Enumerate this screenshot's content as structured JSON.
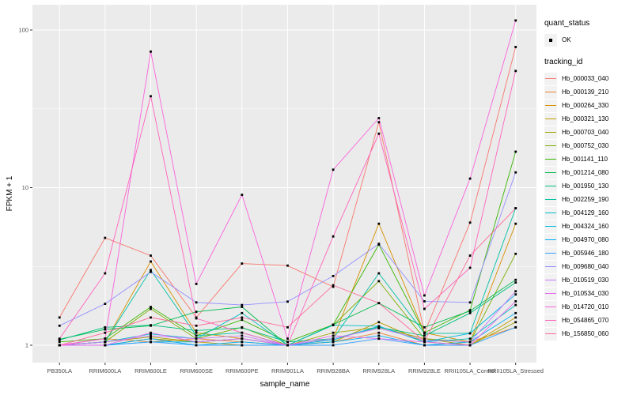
{
  "figure": {
    "x_axis_title": "sample_name",
    "y_axis_title": "FPKM + 1",
    "legend": {
      "quant_status_title": "quant_status",
      "quant_status_items": [
        {
          "label": "OK",
          "marker": "black-point"
        }
      ],
      "tracking_title": "tracking_id"
    },
    "colors": {
      "panel_bg": "#EBEBEB",
      "grid": "#FFFFFF",
      "tick_text": "#4D4D4D",
      "title_text": "#000000",
      "legend_key_bg": "#F2F2F2",
      "point": "#000000"
    }
  },
  "chart_data": {
    "type": "line",
    "title": "",
    "xlabel": "sample_name",
    "ylabel": "FPKM + 1",
    "x_type": "categorical",
    "y_scale": "log10",
    "y_breaks": [
      1,
      10,
      100
    ],
    "y_tick_labels": [
      "1",
      "10",
      "100"
    ],
    "y_minor_breaks": [
      3.162,
      31.623
    ],
    "ylim": [
      0.93,
      145
    ],
    "grid": true,
    "legend_position": "right",
    "point_marker": "small black square (quant_status = OK)",
    "categories": [
      "PB350LA",
      "RRIM600LA",
      "RRIM600LE",
      "RRIM600SE",
      "RRIM600PE",
      "RRIM901LA",
      "RRIM928BA",
      "RRIM928LA",
      "RRIM928LE",
      "RRII105LA_Control",
      "RRII105LA_Stressed"
    ],
    "series": [
      {
        "name": "Hb_000033_040",
        "color": "#F8766D",
        "values": [
          1.5,
          4.8,
          3.7,
          1.5,
          3.3,
          3.2,
          2.35,
          26,
          1.2,
          6.0,
          78
        ]
      },
      {
        "name": "Hb_000139_210",
        "color": "#EA8331",
        "values": [
          1.0,
          1.1,
          1.05,
          1.1,
          1.05,
          1.0,
          1.05,
          1.2,
          1.0,
          1.05,
          1.3
        ]
      },
      {
        "name": "Hb_000264_330",
        "color": "#D89000",
        "values": [
          1.0,
          1.05,
          3.4,
          1.2,
          1.1,
          1.0,
          1.1,
          5.9,
          1.2,
          1.05,
          5.9
        ]
      },
      {
        "name": "Hb_000321_130",
        "color": "#C09B00",
        "values": [
          1.0,
          1.0,
          1.1,
          1.05,
          1.0,
          1.0,
          1.05,
          1.4,
          1.05,
          1.0,
          1.5
        ]
      },
      {
        "name": "Hb_000703_040",
        "color": "#A3A500",
        "values": [
          1.0,
          1.05,
          1.13,
          1.05,
          1.1,
          1.0,
          1.2,
          1.3,
          1.1,
          1.0,
          1.4
        ]
      },
      {
        "name": "Hb_000752_030",
        "color": "#7CAE00",
        "values": [
          1.0,
          1.05,
          1.7,
          1.1,
          1.3,
          1.0,
          1.34,
          2.55,
          1.1,
          1.05,
          3.8
        ]
      },
      {
        "name": "Hb_001141_110",
        "color": "#39B600",
        "values": [
          1.05,
          1.1,
          1.75,
          1.15,
          1.45,
          1.05,
          1.35,
          4.35,
          1.2,
          1.67,
          16.9
        ]
      },
      {
        "name": "Hb_001214_080",
        "color": "#00BB4E",
        "values": [
          1.09,
          1.26,
          1.33,
          1.63,
          1.75,
          1.0,
          1.35,
          1.85,
          1.3,
          1.65,
          2.6
        ]
      },
      {
        "name": "Hb_001950_130",
        "color": "#00BF7D",
        "values": [
          1.08,
          1.3,
          1.34,
          1.24,
          1.29,
          1.05,
          1.1,
          1.3,
          1.15,
          1.6,
          2.5
        ]
      },
      {
        "name": "Hb_002259_190",
        "color": "#00C1A3",
        "values": [
          1.0,
          1.05,
          3.0,
          1.15,
          1.2,
          1.0,
          1.1,
          2.86,
          1.19,
          1.19,
          7.4
        ]
      },
      {
        "name": "Hb_004129_160",
        "color": "#00BFC4",
        "values": [
          1.0,
          1.05,
          1.18,
          1.1,
          1.6,
          1.0,
          1.34,
          1.32,
          1.05,
          1.1,
          1.8
        ]
      },
      {
        "name": "Hb_004324_160",
        "color": "#00BAE0",
        "values": [
          1.0,
          1.0,
          1.05,
          1.05,
          1.1,
          1.0,
          1.08,
          1.32,
          1.05,
          1.19,
          2.1
        ]
      },
      {
        "name": "Hb_004970_080",
        "color": "#00B0F6",
        "values": [
          1.0,
          1.0,
          1.1,
          1.0,
          1.05,
          1.0,
          1.05,
          1.15,
          1.0,
          1.05,
          1.6
        ]
      },
      {
        "name": "Hb_005946_180",
        "color": "#35A2FF",
        "values": [
          1.0,
          1.0,
          1.05,
          1.0,
          1.0,
          1.0,
          1.0,
          1.1,
          1.0,
          1.0,
          1.3
        ]
      },
      {
        "name": "Hb_009680_040",
        "color": "#9590FF",
        "values": [
          1.33,
          1.83,
          2.92,
          1.87,
          1.8,
          1.89,
          2.75,
          4.4,
          1.9,
          1.87,
          12.5
        ]
      },
      {
        "name": "Hb_010519_030",
        "color": "#C77CFF",
        "values": [
          1.0,
          1.05,
          1.15,
          1.1,
          1.15,
          1.0,
          1.1,
          1.28,
          1.08,
          1.05,
          2.2
        ]
      },
      {
        "name": "Hb_010534_030",
        "color": "#E76BF3",
        "values": [
          1.0,
          1.0,
          1.2,
          1.05,
          1.1,
          1.0,
          1.15,
          1.1,
          1.05,
          1.0,
          1.9
        ]
      },
      {
        "name": "Hb_014720_010",
        "color": "#FA62DB",
        "values": [
          1.0,
          1.1,
          73,
          2.45,
          9.0,
          1.1,
          13,
          27.6,
          2.07,
          11.4,
          115
        ]
      },
      {
        "name": "Hb_054865_070",
        "color": "#FF62BC",
        "values": [
          1.1,
          2.86,
          38,
          1.48,
          1.2,
          1.0,
          4.9,
          22,
          1.7,
          3.1,
          55
        ]
      },
      {
        "name": "Hb_156850_060",
        "color": "#FF6A98",
        "values": [
          1.0,
          1.2,
          1.5,
          1.33,
          1.5,
          1.3,
          2.4,
          1.85,
          1.06,
          3.7,
          7.4
        ]
      }
    ]
  }
}
